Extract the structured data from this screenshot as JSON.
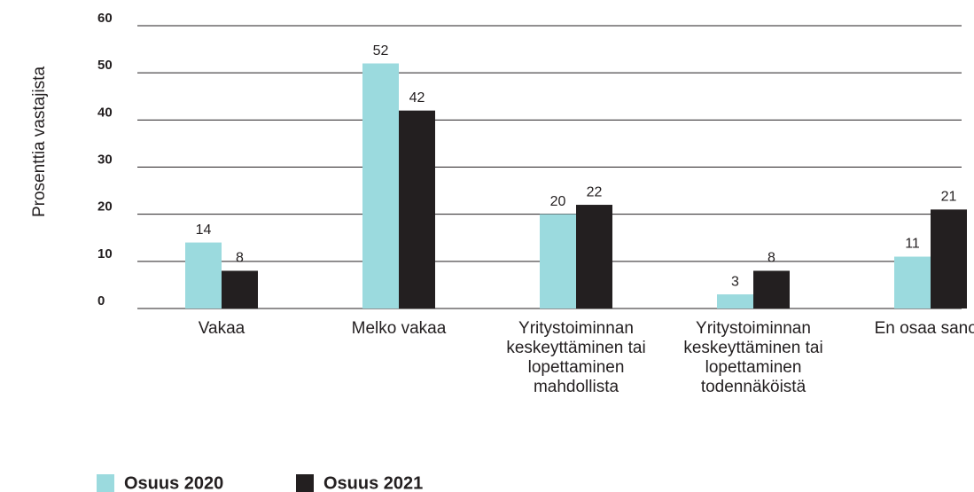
{
  "chart_data": {
    "type": "bar",
    "y_label": "Prosenttia vastajista",
    "categories": [
      "Vakaa",
      "Melko vakaa",
      "Yritystoiminnan keskeyttäminen tai lopettaminen mahdollista",
      "Yritystoiminnan keskeyttäminen tai lopettaminen todennäköistä",
      "En osaa sanoa"
    ],
    "series": [
      {
        "name": "Osuus 2020",
        "color": "#9bdade",
        "values": [
          14,
          52,
          20,
          3,
          11
        ]
      },
      {
        "name": "Osuus 2021",
        "color": "#231f20",
        "values": [
          8,
          42,
          22,
          8,
          21
        ]
      }
    ],
    "ylim": [
      0,
      60
    ],
    "yticks": [
      0,
      10,
      20,
      30,
      40,
      50,
      60
    ],
    "grid": true,
    "legend": "bottom-left"
  }
}
